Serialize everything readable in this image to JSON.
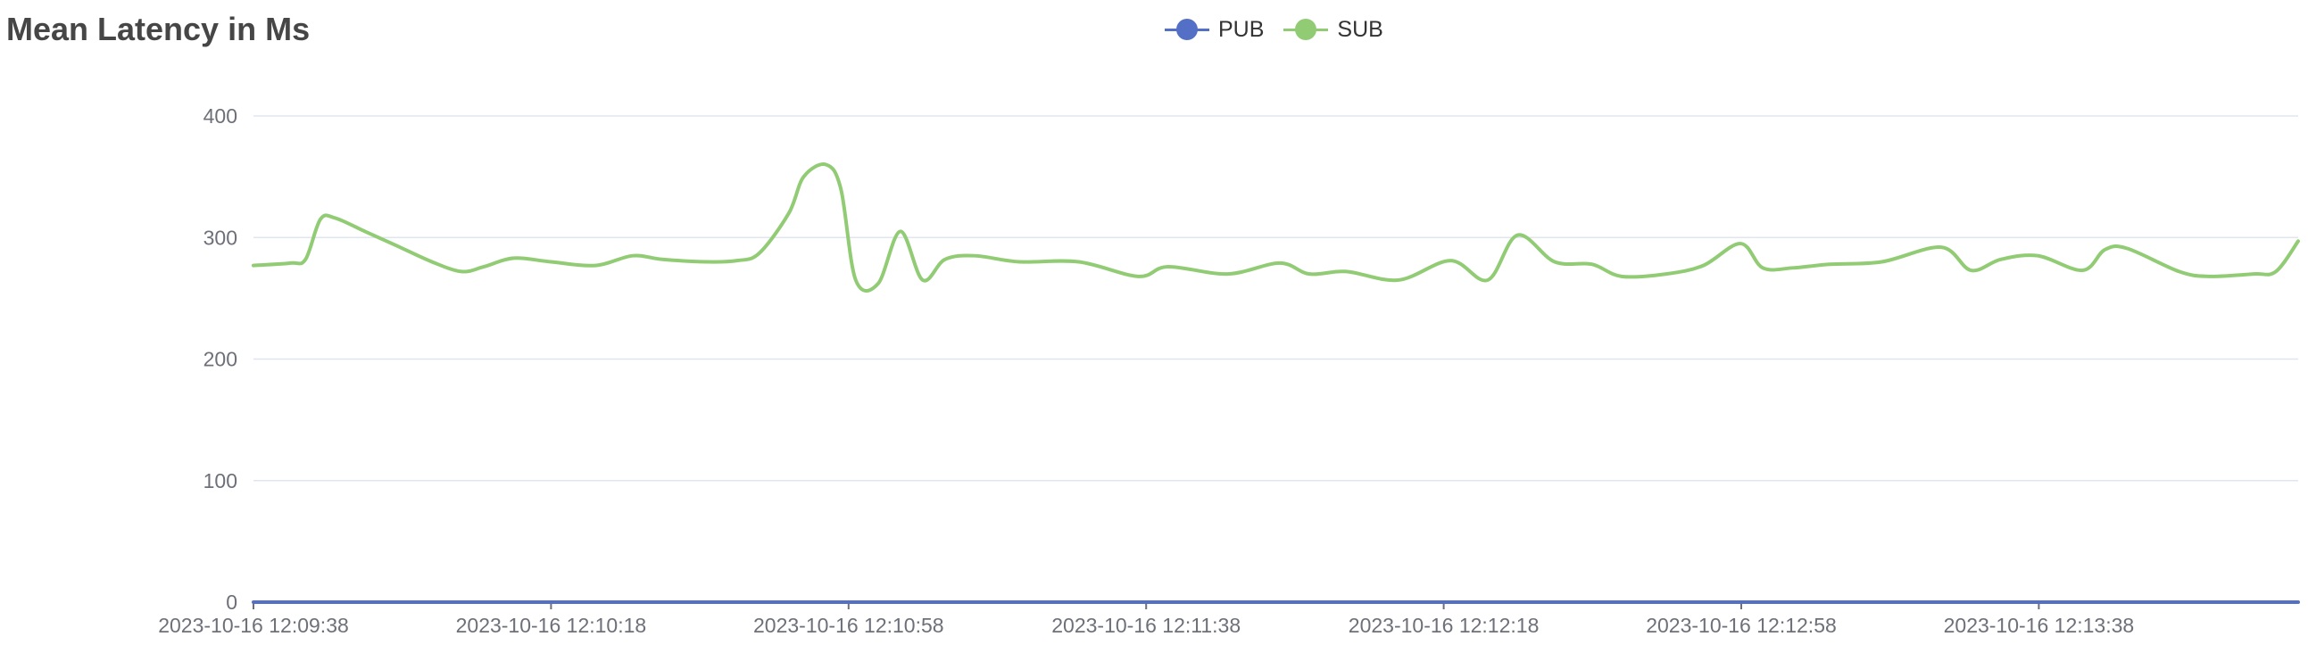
{
  "chart_data": {
    "type": "line",
    "title": "Mean Latency in Ms",
    "ylim": [
      0,
      400
    ],
    "yticks": [
      0,
      100,
      200,
      300,
      400
    ],
    "grid": true,
    "legend_position": "top-center",
    "x_tick_labels": [
      "2023-10-16 12:09:38",
      "2023-10-16 12:10:18",
      "2023-10-16 12:10:58",
      "2023-10-16 12:11:38",
      "2023-10-16 12:12:18",
      "2023-10-16 12:12:58",
      "2023-10-16 12:13:38"
    ],
    "x_range_seconds": [
      0,
      275
    ],
    "series": [
      {
        "name": "PUB",
        "color": "#5470c6",
        "x": [
          0,
          275
        ],
        "values": [
          0,
          0
        ]
      },
      {
        "name": "SUB",
        "color": "#91cc75",
        "x": [
          0,
          5,
          7,
          9,
          11,
          15,
          19,
          24,
          28,
          31,
          35,
          40,
          46,
          51,
          55,
          61,
          65,
          68,
          72,
          74,
          77,
          79,
          81,
          84,
          87,
          90,
          93,
          97,
          103,
          111,
          119,
          123,
          131,
          138,
          142,
          147,
          154,
          161,
          166,
          170,
          175,
          180,
          184,
          190,
          195,
          200,
          203,
          207,
          212,
          219,
          227,
          231,
          235,
          240,
          246,
          249,
          252,
          259,
          263,
          269,
          272,
          275
        ],
        "values": [
          277,
          279,
          282,
          315,
          316,
          305,
          294,
          280,
          272,
          276,
          283,
          280,
          277,
          285,
          282,
          280,
          281,
          287,
          320,
          350,
          360,
          340,
          265,
          262,
          305,
          265,
          282,
          285,
          280,
          280,
          268,
          276,
          270,
          279,
          270,
          272,
          265,
          281,
          265,
          302,
          280,
          278,
          268,
          270,
          277,
          295,
          275,
          275,
          278,
          280,
          292,
          273,
          282,
          285,
          273,
          290,
          291,
          272,
          268,
          270,
          272,
          297
        ]
      }
    ]
  }
}
